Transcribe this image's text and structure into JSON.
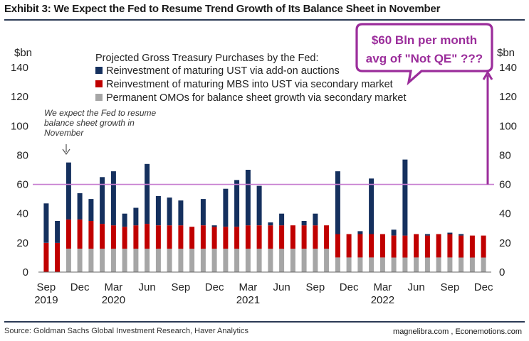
{
  "header": {
    "title": "Exhibit 3: We Expect the Fed to Resume Trend Growth of Its Balance Sheet in November"
  },
  "footer": {
    "source": "Source: Goldman Sachs Global Investment Research, Haver Analytics",
    "credit": "magnelibra.com , Econemotions.com"
  },
  "annotation": {
    "callout_line1": "$60 Bln per month",
    "callout_line2": "avg of \"Not QE\" ???",
    "note_lines": [
      "We expect the Fed  to resume",
      "balance sheet growth in",
      "November"
    ],
    "reference_value": 60,
    "reference_color": "#c77dd0",
    "callout_color": "#9b2d9b"
  },
  "chart_data": {
    "type": "bar",
    "stacked": true,
    "ylim": [
      0,
      140
    ],
    "yticks": [
      0,
      20,
      40,
      60,
      80,
      100,
      120,
      140
    ],
    "yunit_left": "$bn",
    "yunit_right": "$bn",
    "legend_title": "Projected Gross Treasury Purchases by the Fed:",
    "legend_placement": "top-center",
    "grid": false,
    "x_tick_labels": [
      {
        "index": 0,
        "label": "Sep",
        "year": "2019"
      },
      {
        "index": 3,
        "label": "Dec",
        "year": ""
      },
      {
        "index": 6,
        "label": "Mar",
        "year": "2020"
      },
      {
        "index": 9,
        "label": "Jun",
        "year": ""
      },
      {
        "index": 12,
        "label": "Sep",
        "year": ""
      },
      {
        "index": 15,
        "label": "Dec",
        "year": ""
      },
      {
        "index": 18,
        "label": "Mar",
        "year": "2021"
      },
      {
        "index": 21,
        "label": "Jun",
        "year": ""
      },
      {
        "index": 24,
        "label": "Sep",
        "year": ""
      },
      {
        "index": 27,
        "label": "Dec",
        "year": ""
      },
      {
        "index": 30,
        "label": "Mar",
        "year": "2022"
      },
      {
        "index": 33,
        "label": "Jun",
        "year": ""
      },
      {
        "index": 36,
        "label": "Sep",
        "year": ""
      },
      {
        "index": 39,
        "label": "Dec",
        "year": ""
      }
    ],
    "x": [
      "2019-09",
      "2019-10",
      "2019-11",
      "2019-12",
      "2020-01",
      "2020-02",
      "2020-03",
      "2020-04",
      "2020-05",
      "2020-06",
      "2020-07",
      "2020-08",
      "2020-09",
      "2020-10",
      "2020-11",
      "2020-12",
      "2021-01",
      "2021-02",
      "2021-03",
      "2021-04",
      "2021-05",
      "2021-06",
      "2021-07",
      "2021-08",
      "2021-09",
      "2021-10",
      "2021-11",
      "2021-12",
      "2022-01",
      "2022-02",
      "2022-03",
      "2022-04",
      "2022-05",
      "2022-06",
      "2022-07",
      "2022-08",
      "2022-09",
      "2022-10",
      "2022-11",
      "2022-12"
    ],
    "series": [
      {
        "name": "Permanent OMOs for balance sheet growth via secondary market",
        "color": "#a6a6a6",
        "values": [
          0,
          0,
          16,
          16,
          16,
          16,
          16,
          16,
          16,
          16,
          16,
          16,
          16,
          16,
          16,
          16,
          16,
          16,
          16,
          16,
          16,
          16,
          16,
          16,
          16,
          16,
          10,
          10,
          10,
          10,
          10,
          10,
          10,
          10,
          10,
          10,
          10,
          10,
          10,
          10
        ]
      },
      {
        "name": "Reinvestment of maturing MBS into UST via secondary market",
        "color": "#c00000",
        "values": [
          20,
          20,
          20,
          20,
          19,
          17,
          16,
          15,
          16,
          17,
          16,
          16,
          16,
          15,
          16,
          15,
          15,
          15,
          16,
          16,
          16,
          16,
          16,
          16,
          16,
          16,
          16,
          16,
          16,
          16,
          16,
          15,
          15,
          16,
          15,
          16,
          16,
          15,
          15,
          15
        ]
      },
      {
        "name": "Reinvestment of maturing UST via add-on auctions",
        "color": "#15305e",
        "values": [
          27,
          15,
          39,
          18,
          15,
          32,
          37,
          9,
          12,
          41,
          20,
          19,
          17,
          0,
          18,
          1,
          26,
          32,
          38,
          27,
          2,
          8,
          0,
          3,
          8,
          0,
          43,
          0,
          2,
          38,
          0,
          4,
          52,
          0,
          1,
          0,
          1,
          1,
          0,
          0
        ]
      }
    ]
  }
}
